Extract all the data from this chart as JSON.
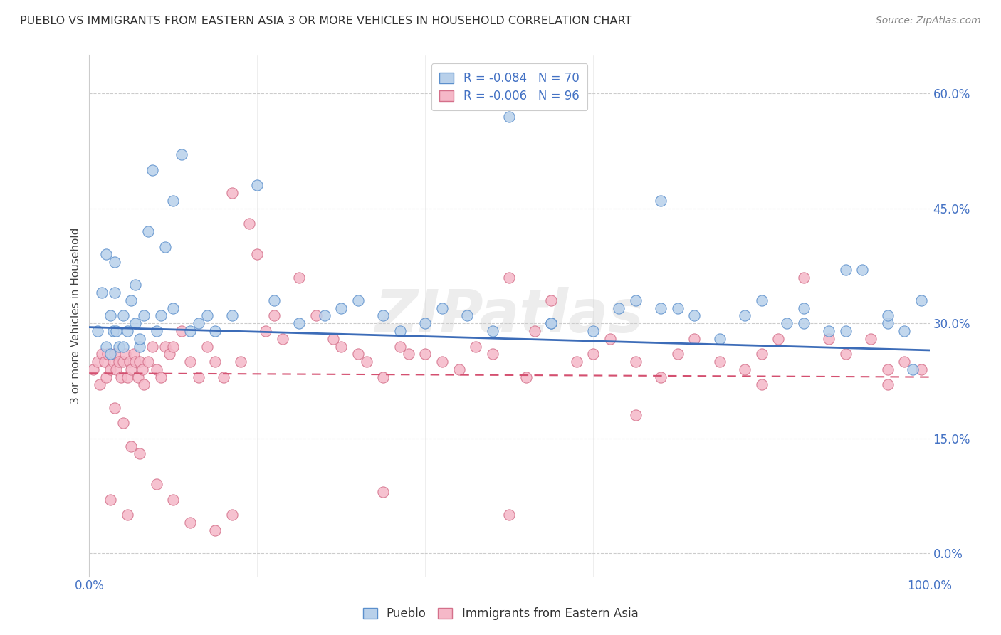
{
  "title": "PUEBLO VS IMMIGRANTS FROM EASTERN ASIA 3 OR MORE VEHICLES IN HOUSEHOLD CORRELATION CHART",
  "source": "Source: ZipAtlas.com",
  "ylabel": "3 or more Vehicles in Household",
  "xlim": [
    0.0,
    100.0
  ],
  "ylim": [
    -3.0,
    65.0
  ],
  "xticks": [
    0.0,
    20.0,
    40.0,
    60.0,
    80.0,
    100.0
  ],
  "yticks": [
    0.0,
    15.0,
    30.0,
    45.0,
    60.0
  ],
  "ytick_labels": [
    "0.0%",
    "15.0%",
    "30.0%",
    "45.0%",
    "60.0%"
  ],
  "pueblo_color": "#b8d0ea",
  "pueblo_edge_color": "#5b8fcc",
  "immigrant_color": "#f5b8c8",
  "immigrant_edge_color": "#d4708a",
  "pueblo_line_color": "#3c6cb8",
  "immigrant_line_color": "#d45070",
  "legend_text1": "R = -0.084   N = 70",
  "legend_text2": "R = -0.006   N = 96",
  "watermark": "ZIPatlas",
  "pueblo_x": [
    1.0,
    1.5,
    2.0,
    2.0,
    2.5,
    2.8,
    3.0,
    3.2,
    3.5,
    4.0,
    4.5,
    5.0,
    5.5,
    6.0,
    6.5,
    7.0,
    7.5,
    8.0,
    9.0,
    10.0,
    11.0,
    12.0,
    14.0,
    15.0,
    17.0,
    20.0,
    22.0,
    25.0,
    28.0,
    30.0,
    35.0,
    37.0,
    40.0,
    42.0,
    45.0,
    48.0,
    50.0,
    55.0,
    60.0,
    63.0,
    65.0,
    68.0,
    70.0,
    72.0,
    75.0,
    78.0,
    80.0,
    83.0,
    85.0,
    88.0,
    90.0,
    92.0,
    95.0,
    97.0,
    99.0,
    3.0,
    8.5,
    13.0,
    32.0,
    55.0,
    6.0,
    4.0,
    2.5,
    5.5,
    85.0,
    90.0,
    95.0,
    98.0,
    10.0,
    68.0
  ],
  "pueblo_y": [
    29.0,
    34.0,
    27.0,
    39.0,
    31.0,
    29.0,
    34.0,
    29.0,
    27.0,
    31.0,
    29.0,
    33.0,
    30.0,
    27.0,
    31.0,
    42.0,
    50.0,
    29.0,
    40.0,
    46.0,
    52.0,
    29.0,
    31.0,
    29.0,
    31.0,
    48.0,
    33.0,
    30.0,
    31.0,
    32.0,
    31.0,
    29.0,
    30.0,
    32.0,
    31.0,
    29.0,
    57.0,
    30.0,
    29.0,
    32.0,
    33.0,
    46.0,
    32.0,
    31.0,
    28.0,
    31.0,
    33.0,
    30.0,
    32.0,
    29.0,
    37.0,
    37.0,
    30.0,
    29.0,
    33.0,
    38.0,
    31.0,
    30.0,
    33.0,
    30.0,
    28.0,
    27.0,
    26.0,
    35.0,
    30.0,
    29.0,
    31.0,
    24.0,
    32.0,
    32.0
  ],
  "immigrant_x": [
    0.5,
    1.0,
    1.2,
    1.5,
    1.8,
    2.0,
    2.2,
    2.5,
    2.8,
    3.0,
    3.2,
    3.5,
    3.8,
    4.0,
    4.3,
    4.5,
    4.8,
    5.0,
    5.3,
    5.5,
    5.8,
    6.0,
    6.3,
    6.5,
    7.0,
    7.5,
    8.0,
    8.5,
    9.0,
    9.5,
    10.0,
    11.0,
    12.0,
    13.0,
    14.0,
    15.0,
    16.0,
    17.0,
    18.0,
    19.0,
    20.0,
    21.0,
    22.0,
    23.0,
    25.0,
    27.0,
    29.0,
    30.0,
    32.0,
    33.0,
    35.0,
    37.0,
    38.0,
    40.0,
    42.0,
    44.0,
    46.0,
    48.0,
    50.0,
    52.0,
    53.0,
    55.0,
    58.0,
    60.0,
    62.0,
    65.0,
    68.0,
    70.0,
    72.0,
    75.0,
    78.0,
    80.0,
    82.0,
    85.0,
    88.0,
    90.0,
    93.0,
    95.0,
    97.0,
    99.0,
    3.0,
    4.0,
    5.0,
    6.0,
    8.0,
    10.0,
    12.0,
    15.0,
    17.0,
    35.0,
    50.0,
    65.0,
    80.0,
    95.0,
    2.5,
    4.5
  ],
  "immigrant_y": [
    24.0,
    25.0,
    22.0,
    26.0,
    25.0,
    23.0,
    26.0,
    24.0,
    25.0,
    26.0,
    24.0,
    25.0,
    23.0,
    25.0,
    26.0,
    23.0,
    25.0,
    24.0,
    26.0,
    25.0,
    23.0,
    25.0,
    24.0,
    22.0,
    25.0,
    27.0,
    24.0,
    23.0,
    27.0,
    26.0,
    27.0,
    29.0,
    25.0,
    23.0,
    27.0,
    25.0,
    23.0,
    47.0,
    25.0,
    43.0,
    39.0,
    29.0,
    31.0,
    28.0,
    36.0,
    31.0,
    28.0,
    27.0,
    26.0,
    25.0,
    23.0,
    27.0,
    26.0,
    26.0,
    25.0,
    24.0,
    27.0,
    26.0,
    36.0,
    23.0,
    29.0,
    33.0,
    25.0,
    26.0,
    28.0,
    25.0,
    23.0,
    26.0,
    28.0,
    25.0,
    24.0,
    26.0,
    28.0,
    36.0,
    28.0,
    26.0,
    28.0,
    24.0,
    25.0,
    24.0,
    19.0,
    17.0,
    14.0,
    13.0,
    9.0,
    7.0,
    4.0,
    3.0,
    5.0,
    8.0,
    5.0,
    18.0,
    22.0,
    22.0,
    7.0,
    5.0
  ]
}
